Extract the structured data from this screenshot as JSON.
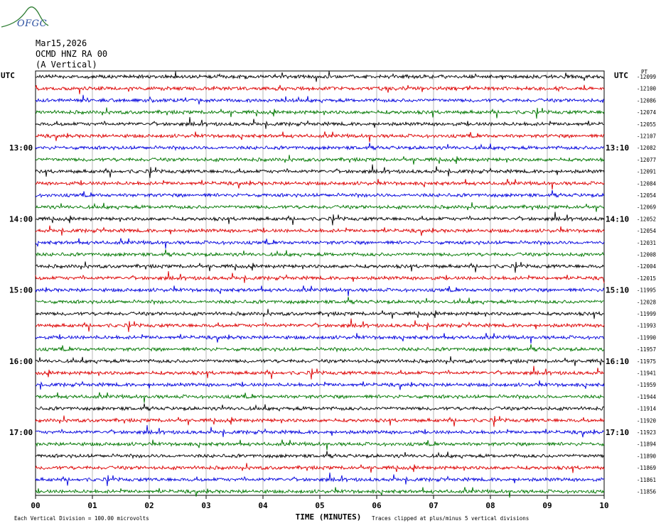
{
  "header": {
    "logo_text": "OFGC",
    "date": "Mar15,2026",
    "station": "OCMD HNZ RA 00",
    "component": "(A Vertical)"
  },
  "chart_data": {
    "type": "line",
    "left_axis_title": "UTC",
    "right_axis_title": "UTC",
    "right_header": "PT",
    "left_hour_labels": [
      "13:00",
      "14:00",
      "15:00",
      "16:00",
      "17:00"
    ],
    "left_hour_label_rows": [
      6,
      12,
      18,
      24,
      30
    ],
    "right_hour_labels": [
      "13:10",
      "14:10",
      "15:10",
      "16:10",
      "17:10"
    ],
    "right_hour_label_rows": [
      6,
      12,
      18,
      24,
      30
    ],
    "trace_offsets": [
      -12099,
      -12100,
      -12086,
      -12074,
      -12055,
      -12107,
      -12082,
      -12077,
      -12091,
      -12084,
      -12054,
      -12069,
      -12052,
      -12054,
      -12031,
      -12008,
      -12004,
      -12015,
      -11995,
      -12028,
      -11999,
      -11993,
      -11990,
      -11957,
      -11975,
      -11941,
      -11959,
      -11944,
      -11914,
      -11920,
      -11923,
      -11894,
      -11890,
      -11869,
      -11861,
      -11856
    ],
    "trace_colors": [
      "#000000",
      "#dd0000",
      "#0000dd",
      "#007700"
    ],
    "x_ticks": [
      "00",
      "01",
      "02",
      "03",
      "04",
      "05",
      "06",
      "07",
      "08",
      "09",
      "10"
    ],
    "xlim": [
      0,
      10
    ],
    "xlabel": "TIME (MINUTES)",
    "footer_left": "Each Vertical Division =  100.00 microvolts",
    "footer_right": "Traces clipped at plus/minus 5 vertical divisions",
    "grid": true
  },
  "colors": {
    "logo": "#2a4fa0",
    "logo_hill": "#2e7d32",
    "grid": "#888888"
  }
}
